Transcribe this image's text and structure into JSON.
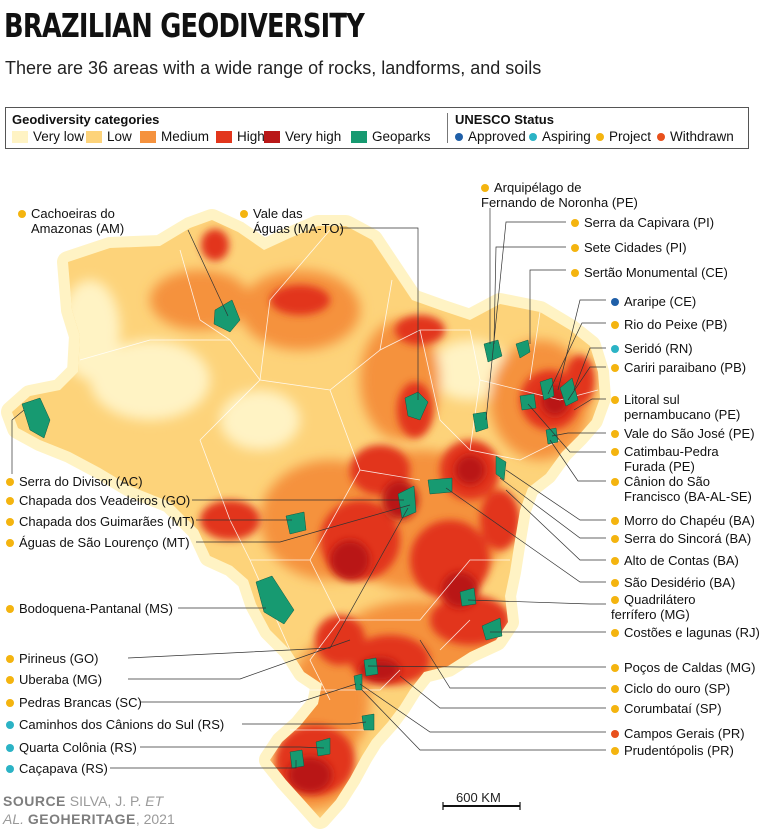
{
  "title": "BRAZILIAN GEODIVERSITY",
  "subtitle": "There are 36 areas with a wide range of rocks, landforms, and soils",
  "legend": {
    "geo_title": "Geodiversity categories",
    "unesco_title": "UNESCO Status",
    "categories": [
      {
        "label": "Very low",
        "color": "#fff3c4"
      },
      {
        "label": "Low",
        "color": "#fdd37a"
      },
      {
        "label": "Medium",
        "color": "#f5923e"
      },
      {
        "label": "High",
        "color": "#e2361c"
      },
      {
        "label": "Very high",
        "color": "#b91818"
      },
      {
        "label": "Geoparks",
        "color": "#179a71"
      }
    ],
    "status": [
      {
        "label": "Approved",
        "color": "#1f5fa8"
      },
      {
        "label": "Aspiring",
        "color": "#2bb3c5"
      },
      {
        "label": "Project",
        "color": "#f4b40f"
      },
      {
        "label": "Withdrawn",
        "color": "#e8501c"
      }
    ]
  },
  "labels": {
    "cachoeiras": {
      "line1": "Cachoeiras do",
      "line2": "Amazonas (AM)",
      "status": "Project"
    },
    "vale_aguas": {
      "line1": "Vale das",
      "line2": "Águas (MA-TO)",
      "status": "Project"
    },
    "arquipelago": {
      "line1": "Arquipélago de",
      "line2": "Fernando de Noronha (PE)",
      "status": "Project"
    },
    "capivara": {
      "line1": "Serra da Capivara (PI)",
      "status": "Project"
    },
    "sete_cidades": {
      "line1": "Sete Cidades (PI)",
      "status": "Project"
    },
    "sertao": {
      "line1": "Sertão Monumental (CE)",
      "status": "Project"
    },
    "araripe": {
      "line1": "Araripe (CE)",
      "status": "Approved"
    },
    "rio_peixe": {
      "line1": "Rio do Peixe (PB)",
      "status": "Project"
    },
    "serido": {
      "line1": "Seridó (RN)",
      "status": "Aspiring"
    },
    "cariri": {
      "line1": "Cariri paraibano (PB)",
      "status": "Project"
    },
    "litoral": {
      "line1": "Litoral sul",
      "line2": "pernambucano (PE)",
      "status": "Project"
    },
    "vale_sjose": {
      "line1": "Vale do São José (PE)",
      "status": "Project"
    },
    "catimbau": {
      "line1": "Catimbau-Pedra",
      "line2": "Furada (PE)",
      "status": "Project"
    },
    "canion_sf": {
      "line1": "Cânion do São",
      "line2": "Francisco (BA-AL-SE)",
      "status": "Project"
    },
    "morro": {
      "line1": "Morro do Chapéu (BA)",
      "status": "Project"
    },
    "sincora": {
      "line1": "Serra do Sincorá (BA)",
      "status": "Project"
    },
    "alto_contas": {
      "line1": "Alto de Contas (BA)",
      "status": "Project"
    },
    "sao_desiderio": {
      "line1": "São Desidério (BA)",
      "status": "Project"
    },
    "quadrilatero": {
      "line1": "Quadrilátero",
      "line2": "ferrífero (MG)",
      "status": "Project"
    },
    "costoes": {
      "line1": "Costões e lagunas (RJ)",
      "status": "Project"
    },
    "pocos": {
      "line1": "Poços de Caldas (MG)",
      "status": "Project"
    },
    "ciclo": {
      "line1": "Ciclo do ouro (SP)",
      "status": "Project"
    },
    "corumbatai": {
      "line1": "Corumbataí  (SP)",
      "status": "Project"
    },
    "campos": {
      "line1": "Campos Gerais  (PR)",
      "status": "Withdrawn"
    },
    "prudentopolis": {
      "line1": "Prudentópolis (PR)",
      "status": "Project"
    },
    "divisor": {
      "line1": "Serra do Divisor (AC)",
      "status": "Project"
    },
    "veadeiros": {
      "line1": "Chapada dos Veadeiros (GO)",
      "status": "Project"
    },
    "guimaraes": {
      "line1": "Chapada dos Guimarães (MT)",
      "status": "Project"
    },
    "lourenco": {
      "line1": "Águas de São Lourenço (MT)",
      "status": "Project"
    },
    "bodoquena": {
      "line1": "Bodoquena-Pantanal (MS)",
      "status": "Project"
    },
    "pirineus": {
      "line1": "Pirineus (GO)",
      "status": "Project"
    },
    "uberaba": {
      "line1": "Uberaba (MG)",
      "status": "Project"
    },
    "pedras": {
      "line1": "Pedras Brancas (SC)",
      "status": "Project"
    },
    "caminhos": {
      "line1": "Caminhos dos Cânions do Sul (RS)",
      "status": "Aspiring"
    },
    "quarta": {
      "line1": "Quarta Colônia (RS)",
      "status": "Aspiring"
    },
    "cacapava": {
      "line1": "Caçapava (RS)",
      "status": "Aspiring"
    }
  },
  "source": {
    "prefix": "SOURCE",
    "line1": "SILVA, J. P. ",
    "et_al": "ET",
    "line2_a": "AL.",
    "journal": "GEOHERITAGE",
    "year": ", 2021"
  },
  "scale": {
    "label": "600 KM"
  }
}
